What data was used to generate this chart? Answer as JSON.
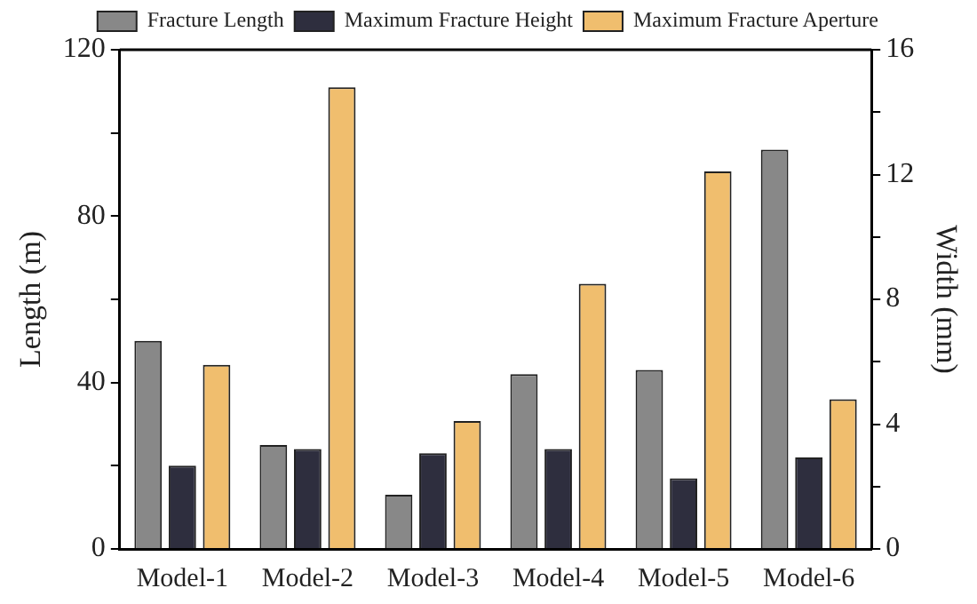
{
  "chart_data": {
    "type": "bar",
    "xlabel": null,
    "ylabel": "Length (m)",
    "y2label": "Width (mm)",
    "categories": [
      "Model-1",
      "Model-2",
      "Model-3",
      "Model-4",
      "Model-5",
      "Model-6"
    ],
    "series": [
      {
        "name": "Fracture Length",
        "color": "#888888",
        "values": [
          50,
          25,
          13,
          42,
          43,
          96
        ]
      },
      {
        "name": "Maximum Fracture Height",
        "color": "#2e2e3e",
        "values": [
          20,
          24,
          23,
          24,
          17,
          22
        ]
      },
      {
        "name": "Maximum Fracture Aperture",
        "color": "#f0be6e",
        "axis": "y2",
        "values": [
          5.9,
          14.8,
          4.1,
          8.5,
          12.1,
          4.8
        ]
      }
    ],
    "ylim": [
      0,
      120
    ],
    "yticks": [
      0,
      {
        "value": 20,
        "label": null
      },
      40,
      {
        "value": 60,
        "label": null
      },
      80,
      {
        "value": 100,
        "label": null
      },
      120
    ],
    "y2lim": [
      0,
      16
    ],
    "y2ticks": [
      0,
      {
        "value": 2,
        "label": null
      },
      4,
      {
        "value": 6,
        "label": null
      },
      8,
      {
        "value": 10,
        "label": null
      },
      12,
      {
        "value": 14,
        "label": null
      },
      16
    ],
    "grid": false,
    "legend": "top"
  }
}
